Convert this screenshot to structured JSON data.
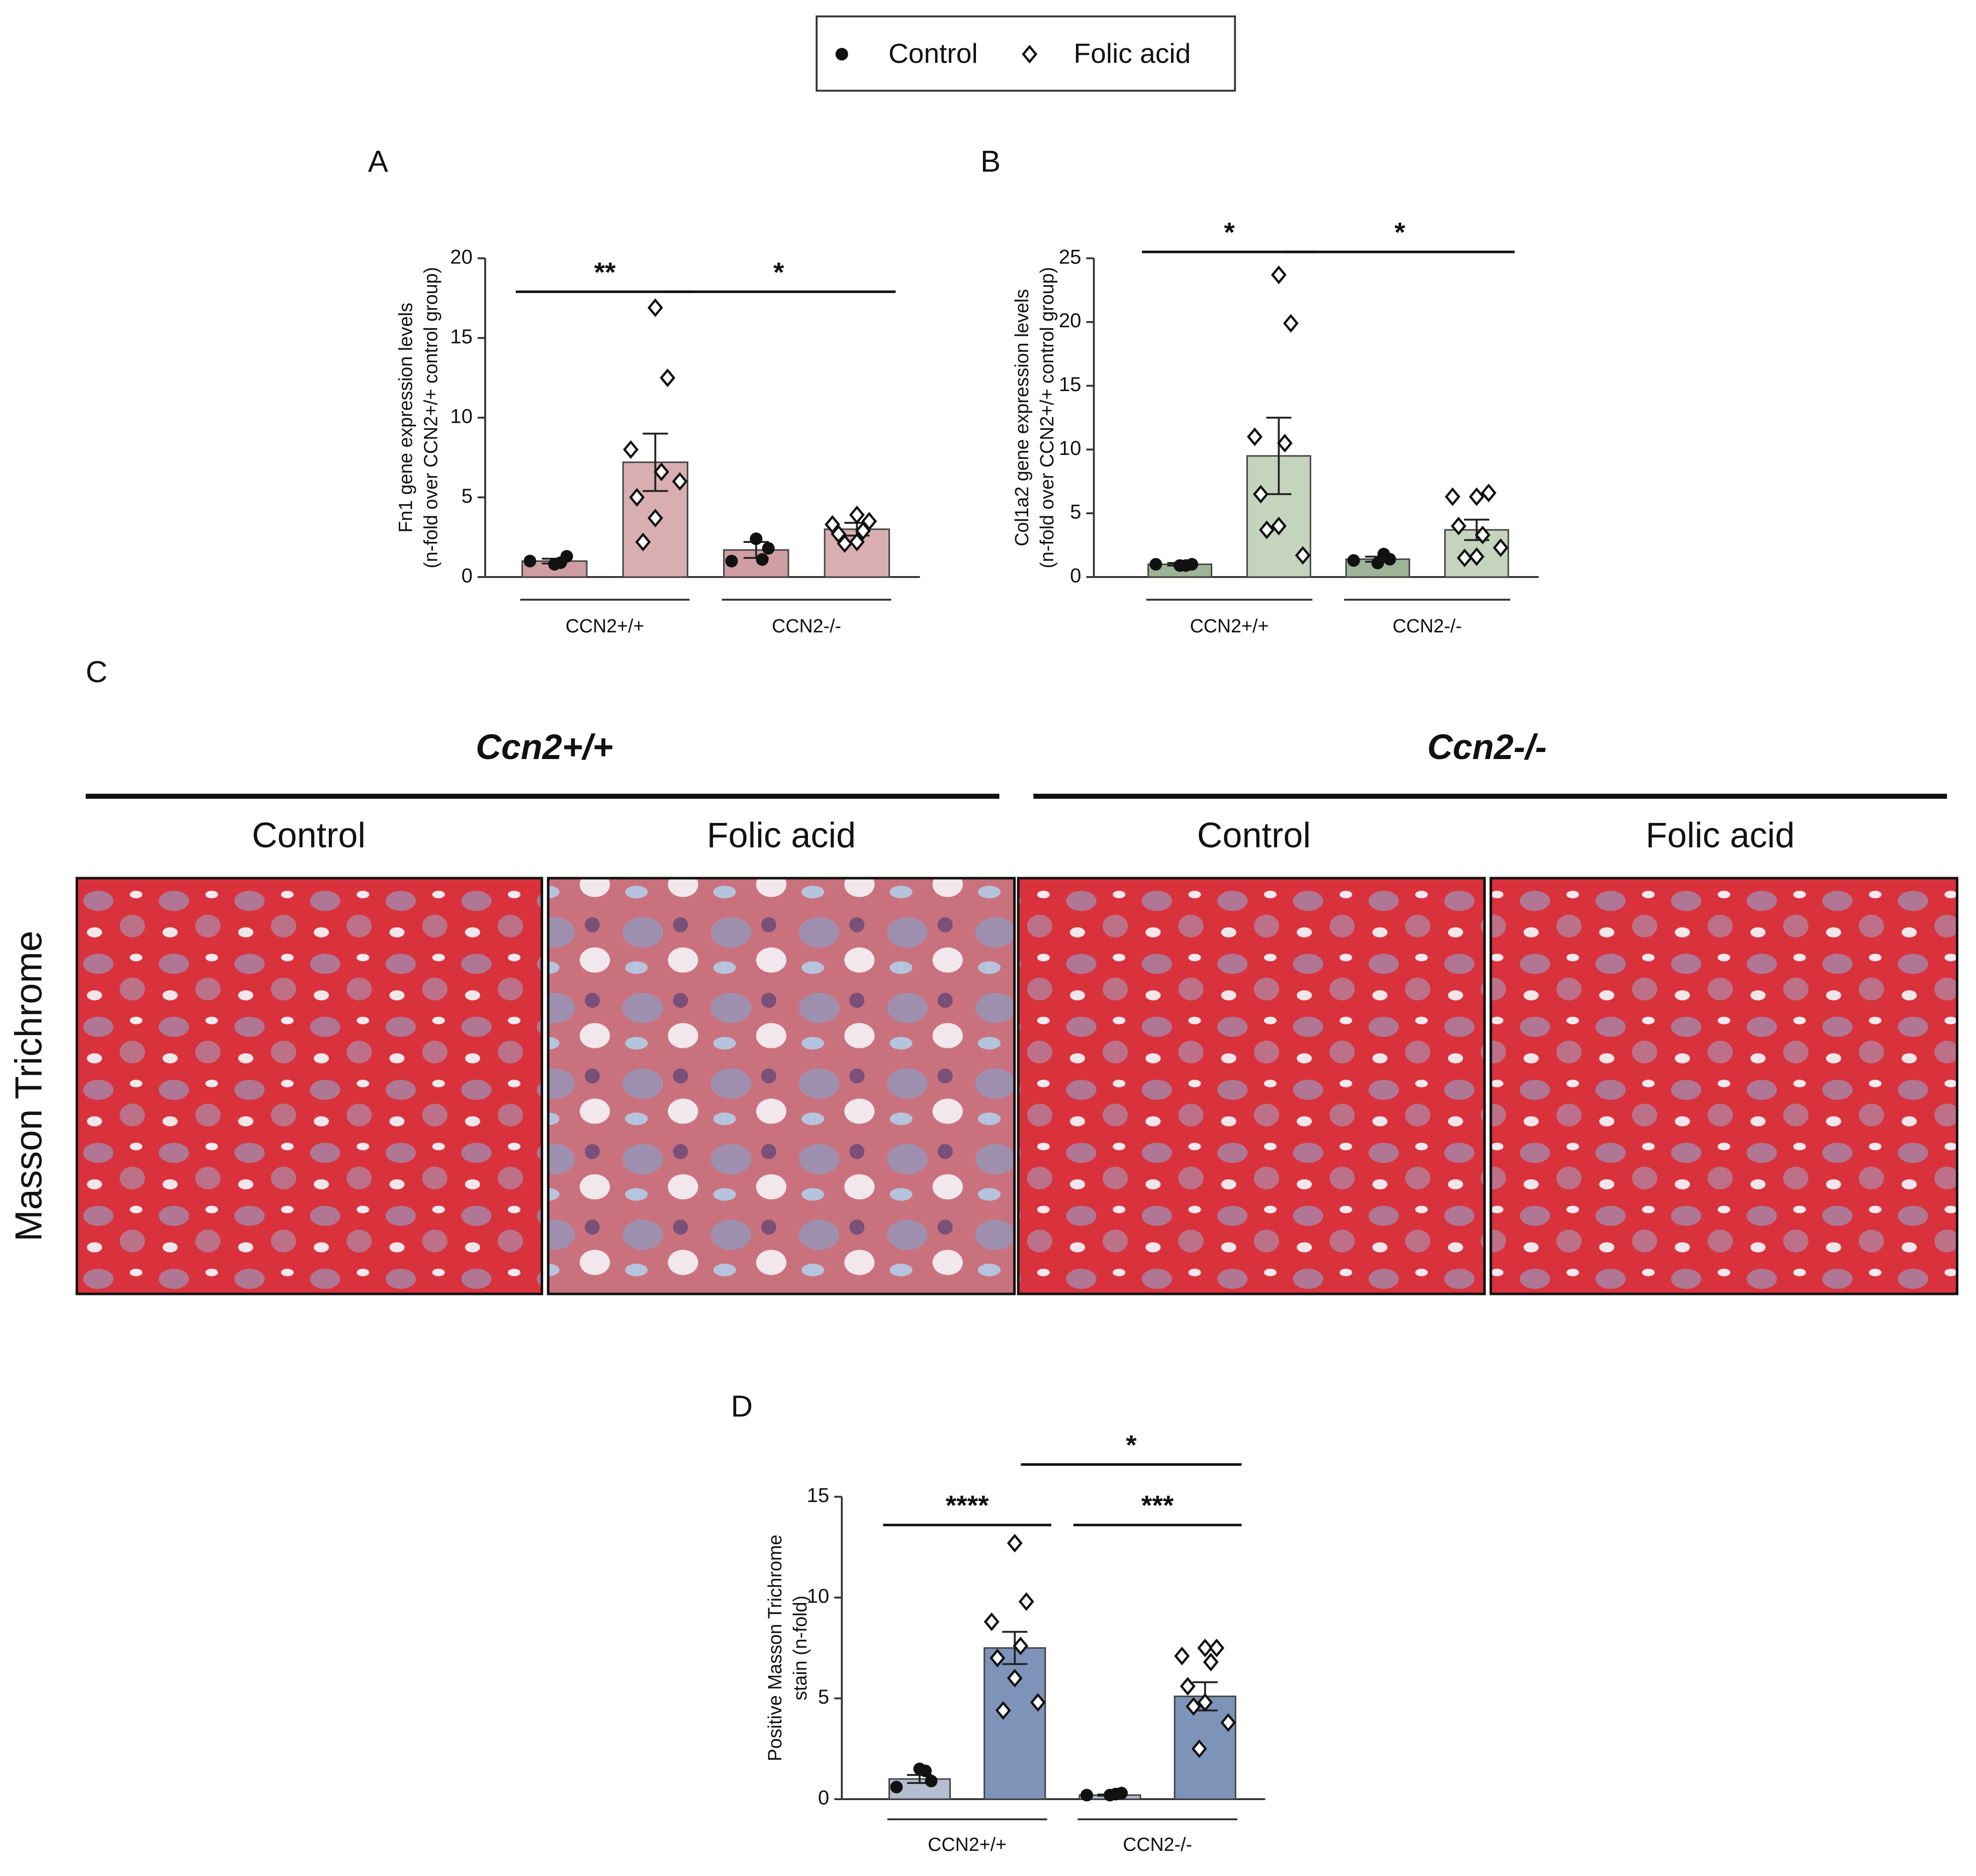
{
  "legend_items": [
    "Control",
    "Folic acid"
  ],
  "chart_data": [
    {
      "type": "bar",
      "label": "A",
      "y_label": [
        "Fn1 gene expression levels",
        "(n-fold over CCN2+/+ control group)"
      ],
      "categories": [
        "CCN2+/+",
        "CCN2-/-"
      ],
      "ylim": [
        0,
        20
      ],
      "yticks": [
        0,
        5,
        10,
        15,
        20
      ],
      "series": [
        {
          "name": "Control",
          "color": "#cf9ea2",
          "marker": "circle",
          "values": [
            1.0,
            1.7
          ],
          "errors": [
            0.15,
            0.5
          ],
          "points": [
            [
              0.8,
              1.3,
              1.0,
              0.9
            ],
            [
              2.4,
              1.8,
              1.0,
              1.1
            ]
          ]
        },
        {
          "name": "Folic acid",
          "color": "#d9aeb1",
          "marker": "diamond",
          "values": [
            7.2,
            3.0
          ],
          "errors": [
            1.8,
            0.4
          ],
          "points": [
            [
              16.9,
              12.5,
              8.0,
              6.6,
              5.0,
              3.7,
              2.2,
              6.0
            ],
            [
              3.9,
              3.5,
              3.3,
              2.9,
              2.7,
              2.2,
              2.1
            ]
          ]
        }
      ],
      "annotations": [
        {
          "text": "**",
          "y": 17.9,
          "bars": [
            0,
            1
          ]
        },
        {
          "text": "*",
          "y": 17.9,
          "bars": [
            1,
            3
          ]
        }
      ]
    },
    {
      "type": "bar",
      "label": "B",
      "y_label": [
        "Col1a2 gene expression levels",
        "(n-fold over CCN2+/+ control group)"
      ],
      "categories": [
        "CCN2+/+",
        "CCN2-/-"
      ],
      "ylim": [
        0,
        25
      ],
      "yticks": [
        0,
        5,
        10,
        15,
        20,
        25
      ],
      "series": [
        {
          "name": "Control",
          "color": "#9db596",
          "marker": "circle",
          "values": [
            1.0,
            1.4
          ],
          "errors": [
            0.1,
            0.2
          ],
          "points": [
            [
              0.9,
              1.0,
              1.0,
              0.9
            ],
            [
              1.1,
              1.4,
              1.3,
              1.8
            ]
          ]
        },
        {
          "name": "Folic acid",
          "color": "#c4d4bd",
          "marker": "diamond",
          "values": [
            9.5,
            3.7
          ],
          "errors": [
            3.0,
            0.8
          ],
          "points": [
            [
              23.7,
              19.9,
              11.0,
              10.5,
              6.5,
              4.0,
              3.7,
              1.7
            ],
            [
              6.3,
              6.6,
              6.3,
              3.3,
              4.0,
              1.6,
              1.5,
              2.3
            ]
          ]
        }
      ],
      "annotations": [
        {
          "text": "*",
          "y": 25.5,
          "bars": [
            0,
            1
          ]
        },
        {
          "text": "*",
          "y": 25.5,
          "bars": [
            1,
            3
          ]
        }
      ]
    },
    {
      "type": "bar",
      "label": "D",
      "y_label": [
        "Positive Masson Trichrome",
        "stain (n-fold)"
      ],
      "categories": [
        "CCN2+/+",
        "CCN2-/-"
      ],
      "ylim": [
        0,
        15
      ],
      "yticks": [
        0,
        5,
        10,
        15
      ],
      "series": [
        {
          "name": "Control",
          "color": "#b4bed1",
          "marker": "circle",
          "values": [
            1.0,
            0.2
          ],
          "errors": [
            0.2,
            0.03
          ],
          "points": [
            [
              1.5,
              0.9,
              0.6,
              1.4
            ],
            [
              0.2,
              0.3,
              0.2,
              0.25
            ]
          ]
        },
        {
          "name": "Folic acid",
          "color": "#7d94b8",
          "marker": "diamond",
          "values": [
            7.5,
            5.1
          ],
          "errors": [
            0.8,
            0.7
          ],
          "points": [
            [
              12.7,
              9.8,
              8.8,
              7.6,
              7.0,
              6.0,
              4.4,
              4.8
            ],
            [
              7.5,
              7.5,
              7.1,
              6.8,
              5.6,
              4.8,
              4.6,
              3.8,
              2.5
            ]
          ]
        }
      ],
      "annotations": [
        {
          "text": "****",
          "y": 13.6,
          "bars": [
            0,
            1
          ]
        },
        {
          "text": "***",
          "y": 13.6,
          "bars": [
            2,
            3
          ]
        },
        {
          "text": "*",
          "y": 16.6,
          "bars": [
            1,
            3
          ]
        }
      ]
    }
  ],
  "panel_c": {
    "label": "C",
    "genotypes": [
      "Ccn2+/+",
      "Ccn2-/-"
    ],
    "treatments": [
      "Control",
      "Folic acid",
      "Control",
      "Folic acid"
    ],
    "row_label": "Masson Trichrome"
  }
}
